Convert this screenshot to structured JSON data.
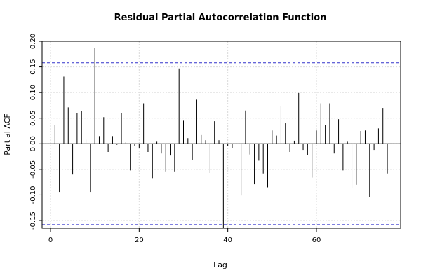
{
  "chart_data": {
    "type": "bar",
    "title": "Residual Partial Autocorrelation Function",
    "xlabel": "Lag",
    "ylabel": "Partial ACF",
    "xlim": [
      -1.9,
      79
    ],
    "ylim": [
      -0.165,
      0.2
    ],
    "x_ticks": [
      0,
      20,
      40,
      60
    ],
    "x_tick_labels": [
      "0",
      "20",
      "40",
      "60"
    ],
    "y_ticks": [
      -0.15,
      -0.1,
      -0.05,
      0.0,
      0.05,
      0.1,
      0.15,
      0.2
    ],
    "y_tick_labels": [
      "-0.15",
      "-0.10",
      "-0.05",
      "0.00",
      "0.05",
      "0.10",
      "0.15",
      "0.20"
    ],
    "conf_band": [
      0.158,
      -0.158
    ],
    "conf_band_color": "#3333cc",
    "grid": true,
    "lags": [
      1,
      2,
      3,
      4,
      5,
      6,
      7,
      8,
      9,
      10,
      11,
      12,
      13,
      14,
      15,
      16,
      17,
      18,
      19,
      20,
      21,
      22,
      23,
      24,
      25,
      26,
      27,
      28,
      29,
      30,
      31,
      32,
      33,
      34,
      35,
      36,
      37,
      38,
      39,
      40,
      41,
      42,
      43,
      44,
      45,
      46,
      47,
      48,
      49,
      50,
      51,
      52,
      53,
      54,
      55,
      56,
      57,
      58,
      59,
      60,
      61,
      62,
      63,
      64,
      65,
      66,
      67,
      68,
      69,
      70,
      71,
      72,
      73,
      74,
      75,
      76
    ],
    "values": [
      0.036,
      -0.094,
      0.131,
      0.071,
      -0.06,
      0.06,
      0.064,
      0.008,
      -0.094,
      0.187,
      0.015,
      0.052,
      -0.016,
      0.015,
      -0.002,
      0.06,
      0.003,
      -0.052,
      -0.005,
      -0.008,
      0.079,
      -0.016,
      -0.067,
      0.004,
      -0.019,
      -0.054,
      -0.023,
      -0.054,
      0.147,
      0.045,
      0.011,
      -0.031,
      0.086,
      0.017,
      0.007,
      -0.057,
      0.044,
      0.007,
      -0.164,
      -0.005,
      -0.008,
      0,
      -0.101,
      0.065,
      -0.021,
      -0.079,
      -0.033,
      -0.058,
      -0.085,
      0.026,
      0.016,
      0.073,
      0.04,
      -0.016,
      0.006,
      0.099,
      -0.012,
      -0.022,
      -0.066,
      0.026,
      0.079,
      0.037,
      0.079,
      -0.019,
      0.048,
      -0.052,
      0.004,
      -0.086,
      -0.08,
      0.025,
      0.026,
      -0.104,
      -0.012,
      0.03,
      0.07,
      -0.058
    ]
  }
}
